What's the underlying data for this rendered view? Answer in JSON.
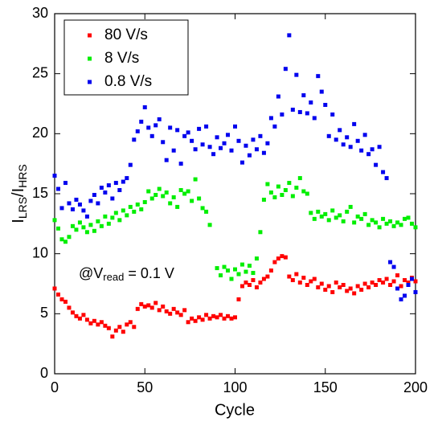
{
  "chart_data": {
    "type": "scatter",
    "xlabel": "Cycle",
    "ylabel": [
      "I",
      "LRS",
      "/I",
      "HRS"
    ],
    "annotation": [
      "@V",
      "read",
      " = 0.1 V"
    ],
    "xlim": [
      0,
      200
    ],
    "ylim": [
      0,
      30
    ],
    "xticks": [
      0,
      50,
      100,
      150,
      200
    ],
    "yticks": [
      0,
      5,
      10,
      15,
      20,
      25,
      30
    ],
    "legend": "upper left",
    "x": [
      0,
      2,
      4,
      6,
      8,
      10,
      12,
      14,
      16,
      18,
      20,
      22,
      24,
      26,
      28,
      30,
      32,
      34,
      36,
      38,
      40,
      42,
      44,
      46,
      48,
      50,
      52,
      54,
      56,
      58,
      60,
      62,
      64,
      66,
      68,
      70,
      72,
      74,
      76,
      78,
      80,
      82,
      84,
      86,
      88,
      90,
      92,
      94,
      96,
      98,
      100,
      102,
      104,
      106,
      108,
      110,
      112,
      114,
      116,
      118,
      120,
      122,
      124,
      126,
      128,
      130,
      132,
      134,
      136,
      138,
      140,
      142,
      144,
      146,
      148,
      150,
      152,
      154,
      156,
      158,
      160,
      162,
      164,
      166,
      168,
      170,
      172,
      174,
      176,
      178,
      180,
      182,
      184,
      186,
      188,
      190,
      192,
      194,
      196,
      198,
      200
    ],
    "series": [
      {
        "name": "80 V/s",
        "color": "#ff0000",
        "values": [
          7.1,
          6.6,
          6.2,
          6.0,
          5.5,
          5.1,
          4.8,
          4.6,
          4.9,
          4.5,
          4.2,
          4.4,
          4.1,
          4.3,
          4.0,
          3.8,
          3.1,
          3.6,
          3.9,
          3.5,
          4.1,
          4.3,
          3.9,
          5.4,
          5.8,
          5.6,
          5.7,
          5.5,
          5.9,
          5.3,
          5.6,
          5.2,
          5.0,
          5.4,
          5.1,
          4.9,
          5.3,
          4.3,
          4.6,
          4.4,
          4.7,
          4.5,
          4.9,
          4.6,
          4.8,
          4.7,
          4.9,
          4.6,
          4.8,
          4.6,
          4.7,
          6.2,
          7.3,
          7.6,
          7.4,
          7.8,
          7.2,
          7.6,
          7.9,
          8.1,
          8.6,
          9.3,
          9.6,
          9.8,
          9.7,
          8.1,
          7.8,
          8.3,
          7.6,
          8.0,
          7.4,
          7.7,
          7.9,
          7.2,
          7.5,
          7.0,
          7.3,
          6.8,
          7.6,
          7.2,
          7.4,
          6.9,
          7.1,
          6.7,
          7.3,
          7.0,
          7.5,
          7.2,
          7.6,
          7.4,
          7.8,
          7.6,
          7.9,
          7.4,
          7.7,
          8.2,
          7.3,
          7.8,
          7.6,
          8.0,
          7.7
        ]
      },
      {
        "name": "8 V/s",
        "color": "#00ee00",
        "values": [
          12.8,
          12.1,
          11.2,
          11.0,
          11.4,
          12.3,
          12.0,
          12.6,
          12.2,
          11.8,
          12.4,
          11.9,
          12.7,
          12.3,
          13.1,
          12.5,
          13.0,
          13.4,
          12.8,
          13.6,
          13.2,
          13.9,
          13.5,
          14.1,
          13.7,
          14.3,
          15.2,
          14.6,
          14.9,
          15.4,
          14.8,
          15.1,
          14.2,
          14.7,
          13.9,
          15.3,
          15.0,
          15.2,
          14.4,
          16.2,
          14.6,
          13.8,
          13.5,
          12.4,
          null,
          8.8,
          8.2,
          8.9,
          8.6,
          7.9,
          8.7,
          8.3,
          9.1,
          8.5,
          9.0,
          8.4,
          9.6,
          11.8,
          14.5,
          15.8,
          15.1,
          14.7,
          15.6,
          14.9,
          15.3,
          15.9,
          14.8,
          15.5,
          16.3,
          15.2,
          15.0,
          13.4,
          12.9,
          13.5,
          13.1,
          13.3,
          12.8,
          13.6,
          13.0,
          13.2,
          12.7,
          13.5,
          13.9,
          12.6,
          13.1,
          12.9,
          13.3,
          12.4,
          12.8,
          12.6,
          12.2,
          12.9,
          12.5,
          12.7,
          12.3,
          12.6,
          12.4,
          12.9,
          13.0,
          12.5,
          12.2
        ]
      },
      {
        "name": "0.8 V/s",
        "color": "#0000ee",
        "values": [
          16.5,
          15.4,
          13.8,
          15.9,
          14.2,
          13.7,
          14.5,
          14.1,
          13.6,
          13.1,
          14.4,
          14.9,
          14.2,
          15.5,
          15.1,
          15.7,
          14.6,
          15.9,
          15.3,
          16.0,
          16.3,
          17.4,
          19.5,
          20.2,
          21.0,
          22.2,
          20.5,
          19.8,
          20.7,
          21.2,
          19.3,
          17.8,
          20.5,
          18.6,
          20.3,
          17.5,
          19.8,
          20.1,
          19.4,
          18.7,
          20.4,
          19.1,
          20.6,
          18.9,
          18.3,
          19.7,
          18.8,
          19.2,
          19.9,
          18.6,
          20.6,
          19.4,
          17.6,
          19.0,
          18.2,
          19.5,
          18.7,
          19.8,
          18.4,
          19.2,
          21.3,
          20.6,
          23.1,
          21.6,
          25.4,
          28.2,
          22.0,
          24.9,
          21.8,
          23.2,
          21.7,
          22.6,
          21.3,
          24.8,
          23.5,
          22.4,
          19.8,
          21.6,
          19.5,
          20.3,
          19.1,
          19.7,
          18.9,
          20.8,
          19.4,
          18.6,
          19.9,
          18.3,
          18.7,
          17.4,
          18.9,
          16.8,
          16.3,
          9.3,
          8.9,
          7.1,
          6.2,
          6.5,
          7.4,
          7.9,
          6.8
        ]
      }
    ]
  }
}
